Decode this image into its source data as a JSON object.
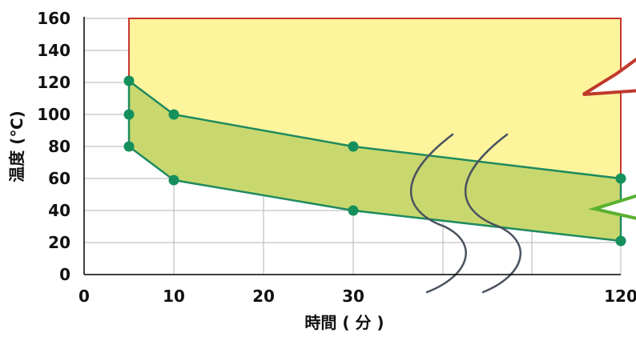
{
  "chart_data": {
    "type": "area",
    "title": "",
    "xlabel": "時間 ( 分 )",
    "ylabel": "温度 (℃)",
    "xlim": [
      0,
      120
    ],
    "ylim": [
      0,
      160
    ],
    "x_ticks": [
      0,
      10,
      20,
      30,
      120
    ],
    "y_ticks": [
      0,
      20,
      40,
      60,
      80,
      100,
      120,
      140,
      160
    ],
    "x_scale": "piecewise, axis broken between 30 and 120",
    "grid": true,
    "series": [
      {
        "values": [
          {
            "x": 5,
            "y": 121
          },
          {
            "x": 10,
            "y": 100
          },
          {
            "x": 30,
            "y": 80
          },
          {
            "x": 120,
            "y": 60
          }
        ]
      },
      {
        "values": [
          {
            "x": 5,
            "y": 80
          },
          {
            "x": 10,
            "y": 59
          },
          {
            "x": 30,
            "y": 40
          },
          {
            "x": 120,
            "y": 21
          }
        ]
      }
    ],
    "extra_points": [
      {
        "x": 5,
        "y": 100
      }
    ],
    "regions": [
      {
        "color": "#fdf49c",
        "border": "#c8372d",
        "description": "upper region above band, x 5–120, up to 160"
      },
      {
        "color": "#c9d86e",
        "border": "#1e8a5e",
        "description": "band between the two series"
      }
    ],
    "callouts": [
      {
        "color": "#c0392b",
        "direction": "left"
      },
      {
        "color": "#5ab031",
        "direction": "left"
      }
    ],
    "colors": {
      "upper_fill": "#fdf49c",
      "upper_border": "#c8372d",
      "band_fill": "#c9d86e",
      "band_border": "#1e8a5e",
      "point": "#15905d",
      "grid": "#b4b4b4",
      "break_curve": "#4a5360",
      "callout_red": "#c0392b",
      "callout_green": "#5ab031"
    }
  }
}
